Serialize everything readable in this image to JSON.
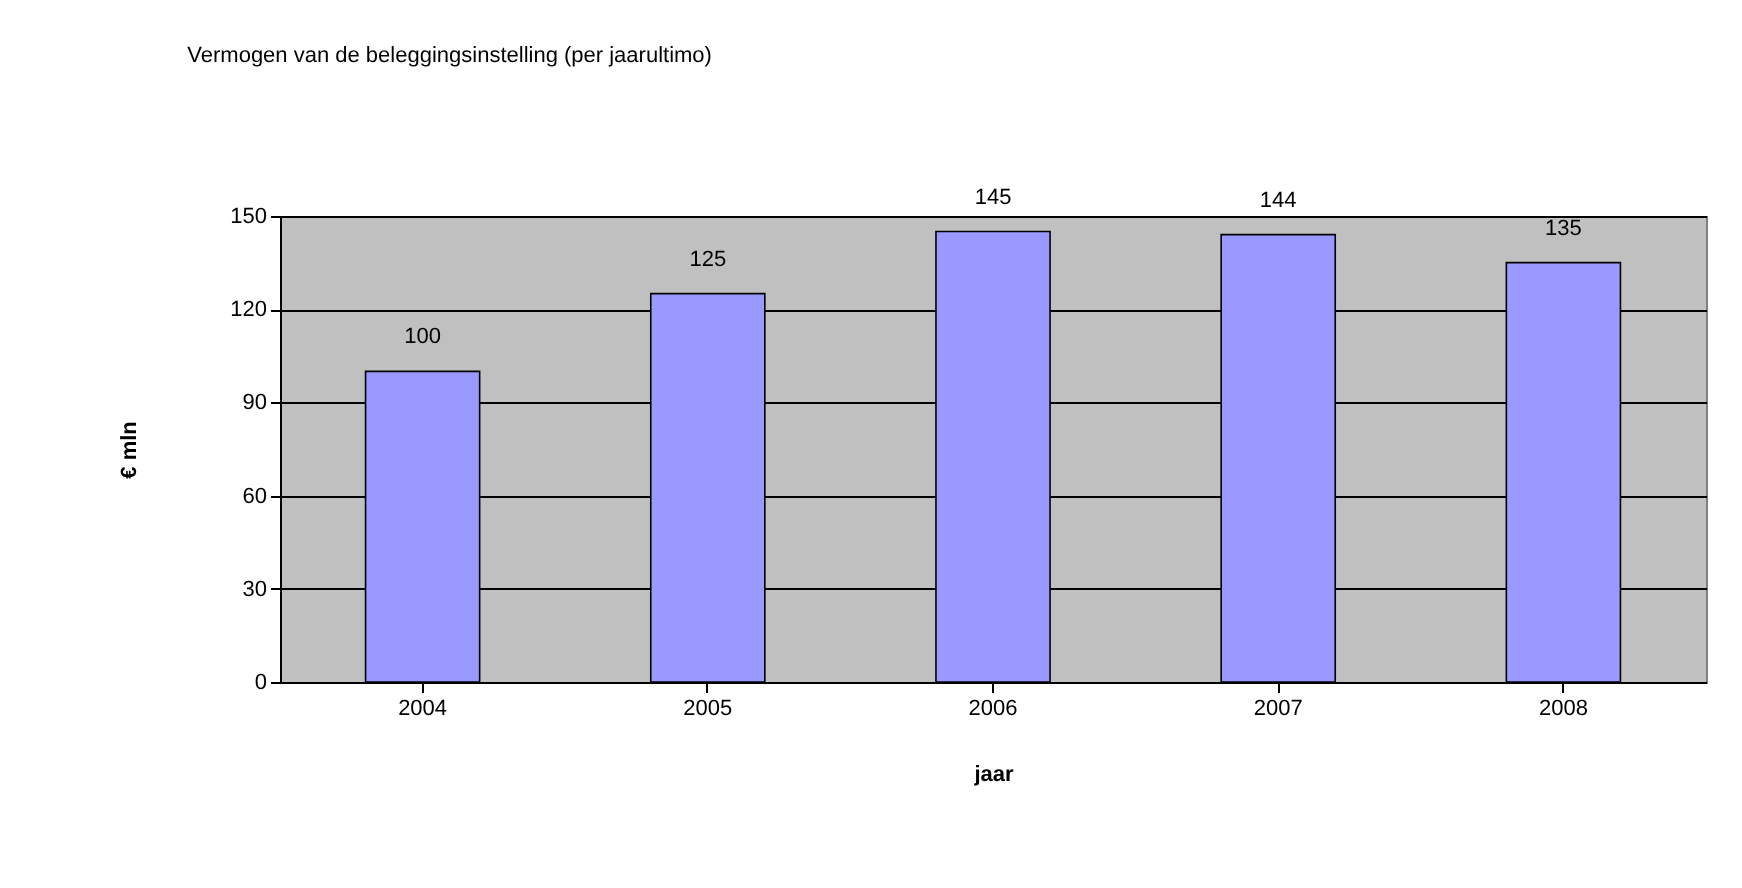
{
  "chart_data": {
    "type": "bar",
    "title": "Vermogen van de beleggingsinstelling (per jaarultimo)",
    "xlabel": "jaar",
    "ylabel": "€ mln",
    "categories": [
      "2004",
      "2005",
      "2006",
      "2007",
      "2008"
    ],
    "values": [
      100,
      125,
      145,
      144,
      135
    ],
    "color": "#9999ff",
    "ylim": [
      0,
      150
    ],
    "yticks": [
      0,
      30,
      60,
      90,
      120,
      150
    ],
    "grid": "y",
    "data_labels": true
  }
}
